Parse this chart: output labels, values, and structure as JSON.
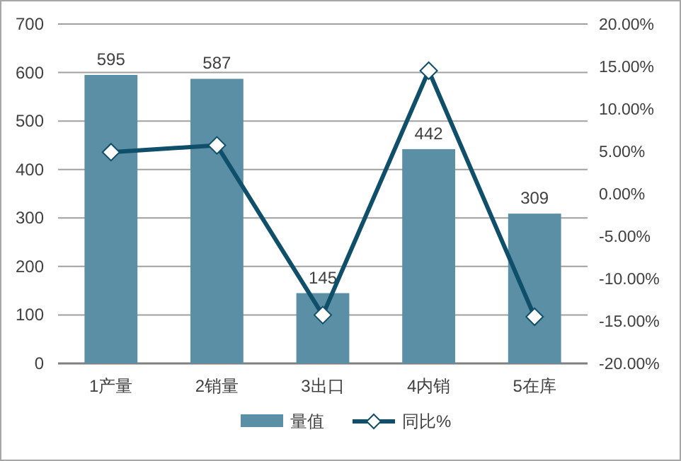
{
  "chart_data": {
    "type": "bar",
    "categories": [
      "1产量",
      "2销量",
      "3出口",
      "4内销",
      "5在库"
    ],
    "series": [
      {
        "name": "量值",
        "color": "#5b8fa6",
        "values": [
          595,
          587,
          145,
          442,
          309
        ],
        "value_labels": [
          "595",
          "587",
          "145",
          "442",
          "309"
        ]
      },
      {
        "name": "同比%",
        "type": "line",
        "axis": "y2",
        "color": "#0f4f6a",
        "marker": "diamond",
        "values": [
          4.9,
          5.7,
          -14.3,
          14.5,
          -14.5
        ]
      }
    ],
    "ylim": [
      0,
      700
    ],
    "yticks": [
      0,
      100,
      200,
      300,
      400,
      500,
      600,
      700
    ],
    "y2lim": [
      -20,
      20
    ],
    "y2ticks": [
      {
        "value": -20,
        "label": "-20.00%"
      },
      {
        "value": -15,
        "label": "-15.00%"
      },
      {
        "value": -10,
        "label": "-10.00%"
      },
      {
        "value": -5,
        "label": "-5.00%"
      },
      {
        "value": 0,
        "label": "0.00%"
      },
      {
        "value": 5,
        "label": "5.00%"
      },
      {
        "value": 10,
        "label": "10.00%"
      },
      {
        "value": 15,
        "label": "15.00%"
      },
      {
        "value": 20,
        "label": "20.00%"
      }
    ],
    "grid": "y",
    "legend": "bottom"
  }
}
